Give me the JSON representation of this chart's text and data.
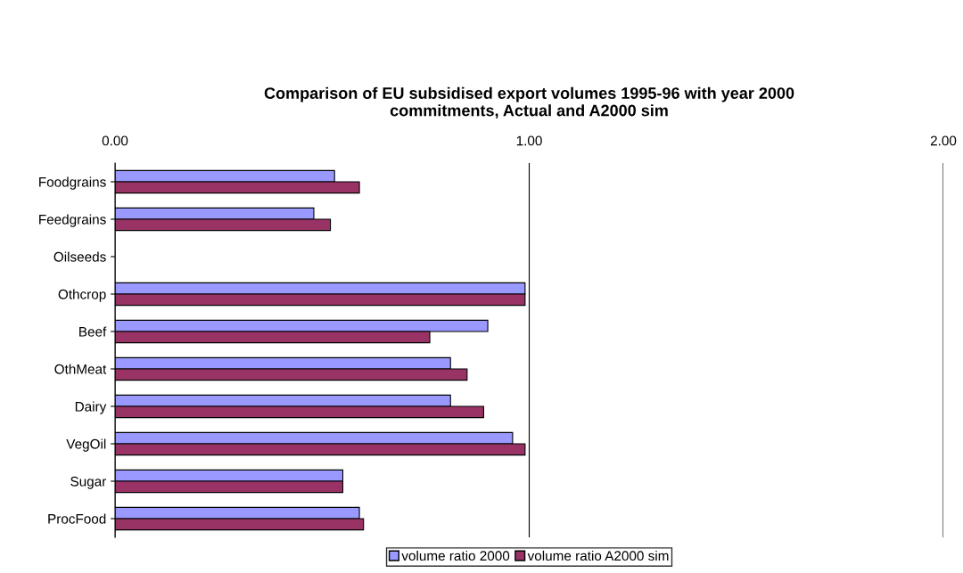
{
  "chart_data": {
    "type": "bar",
    "orientation": "horizontal",
    "title": "Comparison of EU subsidised export volumes 1995-96 with year 2000\ncommitments, Actual and A2000 sim",
    "categories": [
      "Foodgrains",
      "Feedgrains",
      "Oilseeds",
      "Othcrop",
      "Beef",
      "OthMeat",
      "Dairy",
      "VegOil",
      "Sugar",
      "ProcFood"
    ],
    "series": [
      {
        "name": "volume ratio 2000",
        "color": "#9999ff",
        "values": [
          0.53,
          0.48,
          null,
          0.99,
          0.9,
          0.81,
          0.81,
          0.96,
          0.55,
          0.59
        ]
      },
      {
        "name": "volume ratio A2000 sim",
        "color": "#993366",
        "values": [
          0.59,
          0.52,
          null,
          0.99,
          0.76,
          0.85,
          0.89,
          0.99,
          0.55,
          0.6
        ]
      }
    ],
    "xlim": [
      0,
      2
    ],
    "xticks": [
      {
        "value": 0,
        "label": "0.00"
      },
      {
        "value": 1,
        "label": "1.00"
      },
      {
        "value": 2,
        "label": "2.00"
      }
    ],
    "grid": "x",
    "legend": "bottom"
  }
}
